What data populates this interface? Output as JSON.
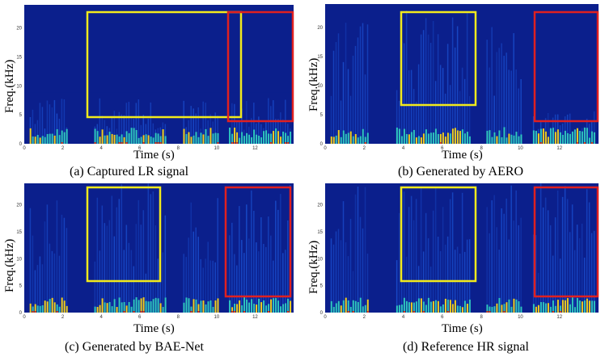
{
  "colors": {
    "background": "#0b1f8c",
    "energy_low": "#1a4fd0",
    "energy_mid": "#2ec7c0",
    "energy_high": "#f0d020",
    "energy_peak": "#e04010",
    "box_yellow": "#f2ea1c",
    "box_red": "#e02020"
  },
  "axis": {
    "ylabel": "Freq.(kHz)",
    "xlabel": "Time (s)",
    "yticks": [
      "0",
      "5",
      "10",
      "15",
      "20"
    ],
    "xticks": [
      "0",
      "2",
      "4",
      "6",
      "8",
      "10",
      "12"
    ]
  },
  "panels": [
    {
      "id": "a",
      "caption": "(a) Captured LR signal",
      "band_limit_khz": 8,
      "highlight_fill": "low"
    },
    {
      "id": "b",
      "caption": "(b) Generated by AERO",
      "band_limit_khz": 24,
      "highlight_fill": "faint"
    },
    {
      "id": "c",
      "caption": "(c) Generated by BAE-Net",
      "band_limit_khz": 24,
      "highlight_fill": "full"
    },
    {
      "id": "d",
      "caption": "(d) Reference HR signal",
      "band_limit_khz": 24,
      "highlight_fill": "full"
    }
  ]
}
